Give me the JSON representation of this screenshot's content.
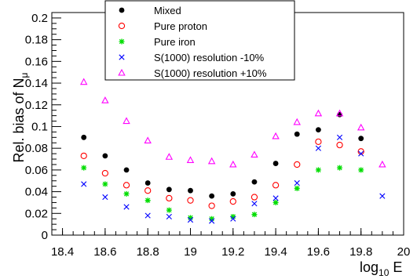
{
  "chart_data": {
    "type": "scatter",
    "xlabel": "log",
    "xlabel_sub": "10",
    "xlabel_tail": " E",
    "ylabel": "Rel. bias of N",
    "ylabel_sub": "μ",
    "xlim": [
      18.35,
      20.0
    ],
    "ylim": [
      0,
      0.205
    ],
    "x_ticks": [
      18.4,
      18.6,
      18.8,
      19,
      19.2,
      19.4,
      19.6,
      19.8,
      20
    ],
    "x_tick_labels": [
      "18.4",
      "18.6",
      "18.8",
      "19",
      "19.2",
      "19.4",
      "19.6",
      "19.8",
      "20"
    ],
    "y_ticks": [
      0,
      0.02,
      0.04,
      0.06,
      0.08,
      0.1,
      0.12,
      0.14,
      0.16,
      0.18,
      0.2
    ],
    "y_tick_labels": [
      "0",
      "0.02",
      "0.04",
      "0.06",
      "0.08",
      "0.1",
      "0.12",
      "0.14",
      "0.16",
      "0.18",
      "0.2"
    ],
    "grid": false,
    "legend_position": "top-center",
    "series": [
      {
        "name": "Mixed",
        "marker": "dot",
        "color": "#000000",
        "x": [
          18.5,
          18.6,
          18.7,
          18.8,
          18.9,
          19.0,
          19.1,
          19.2,
          19.3,
          19.4,
          19.5,
          19.6,
          19.7,
          19.8
        ],
        "y": [
          0.09,
          0.073,
          0.06,
          0.048,
          0.042,
          0.041,
          0.036,
          0.038,
          0.049,
          0.066,
          0.093,
          0.097,
          0.111,
          0.089
        ]
      },
      {
        "name": "Pure proton",
        "marker": "circle",
        "color": "#ff0000",
        "x": [
          18.5,
          18.6,
          18.7,
          18.8,
          18.9,
          19.0,
          19.1,
          19.2,
          19.3,
          19.4,
          19.5,
          19.6,
          19.7,
          19.8
        ],
        "y": [
          0.073,
          0.057,
          0.046,
          0.041,
          0.034,
          0.032,
          0.027,
          0.031,
          0.035,
          0.046,
          0.065,
          0.086,
          0.083,
          0.077
        ]
      },
      {
        "name": "Pure iron",
        "marker": "star",
        "color": "#00dd00",
        "x": [
          18.5,
          18.6,
          18.7,
          18.8,
          18.9,
          19.0,
          19.1,
          19.2,
          19.3,
          19.4,
          19.5,
          19.6,
          19.7,
          19.8
        ],
        "y": [
          0.062,
          0.047,
          0.038,
          0.032,
          0.023,
          0.016,
          0.015,
          0.017,
          0.019,
          0.03,
          0.043,
          0.06,
          0.062,
          0.06
        ]
      },
      {
        "name": "S(1000) resolution -10%",
        "marker": "cross",
        "color": "#0000ff",
        "x": [
          18.5,
          18.6,
          18.7,
          18.8,
          18.9,
          19.0,
          19.1,
          19.2,
          19.3,
          19.4,
          19.5,
          19.6,
          19.7,
          19.8,
          19.9
        ],
        "y": [
          0.047,
          0.035,
          0.026,
          0.018,
          0.017,
          0.014,
          0.013,
          0.015,
          0.029,
          0.034,
          0.048,
          0.08,
          0.09,
          0.075,
          0.036
        ]
      },
      {
        "name": "S(1000) resolution +10%",
        "marker": "triangle",
        "color": "#ff00ff",
        "x": [
          18.5,
          18.6,
          18.7,
          18.8,
          18.9,
          19.0,
          19.1,
          19.2,
          19.3,
          19.4,
          19.5,
          19.6,
          19.7,
          19.8,
          19.9
        ],
        "y": [
          0.141,
          0.124,
          0.105,
          0.087,
          0.072,
          0.069,
          0.068,
          0.065,
          0.074,
          0.091,
          0.104,
          0.112,
          0.112,
          0.099,
          0.065
        ]
      }
    ]
  }
}
